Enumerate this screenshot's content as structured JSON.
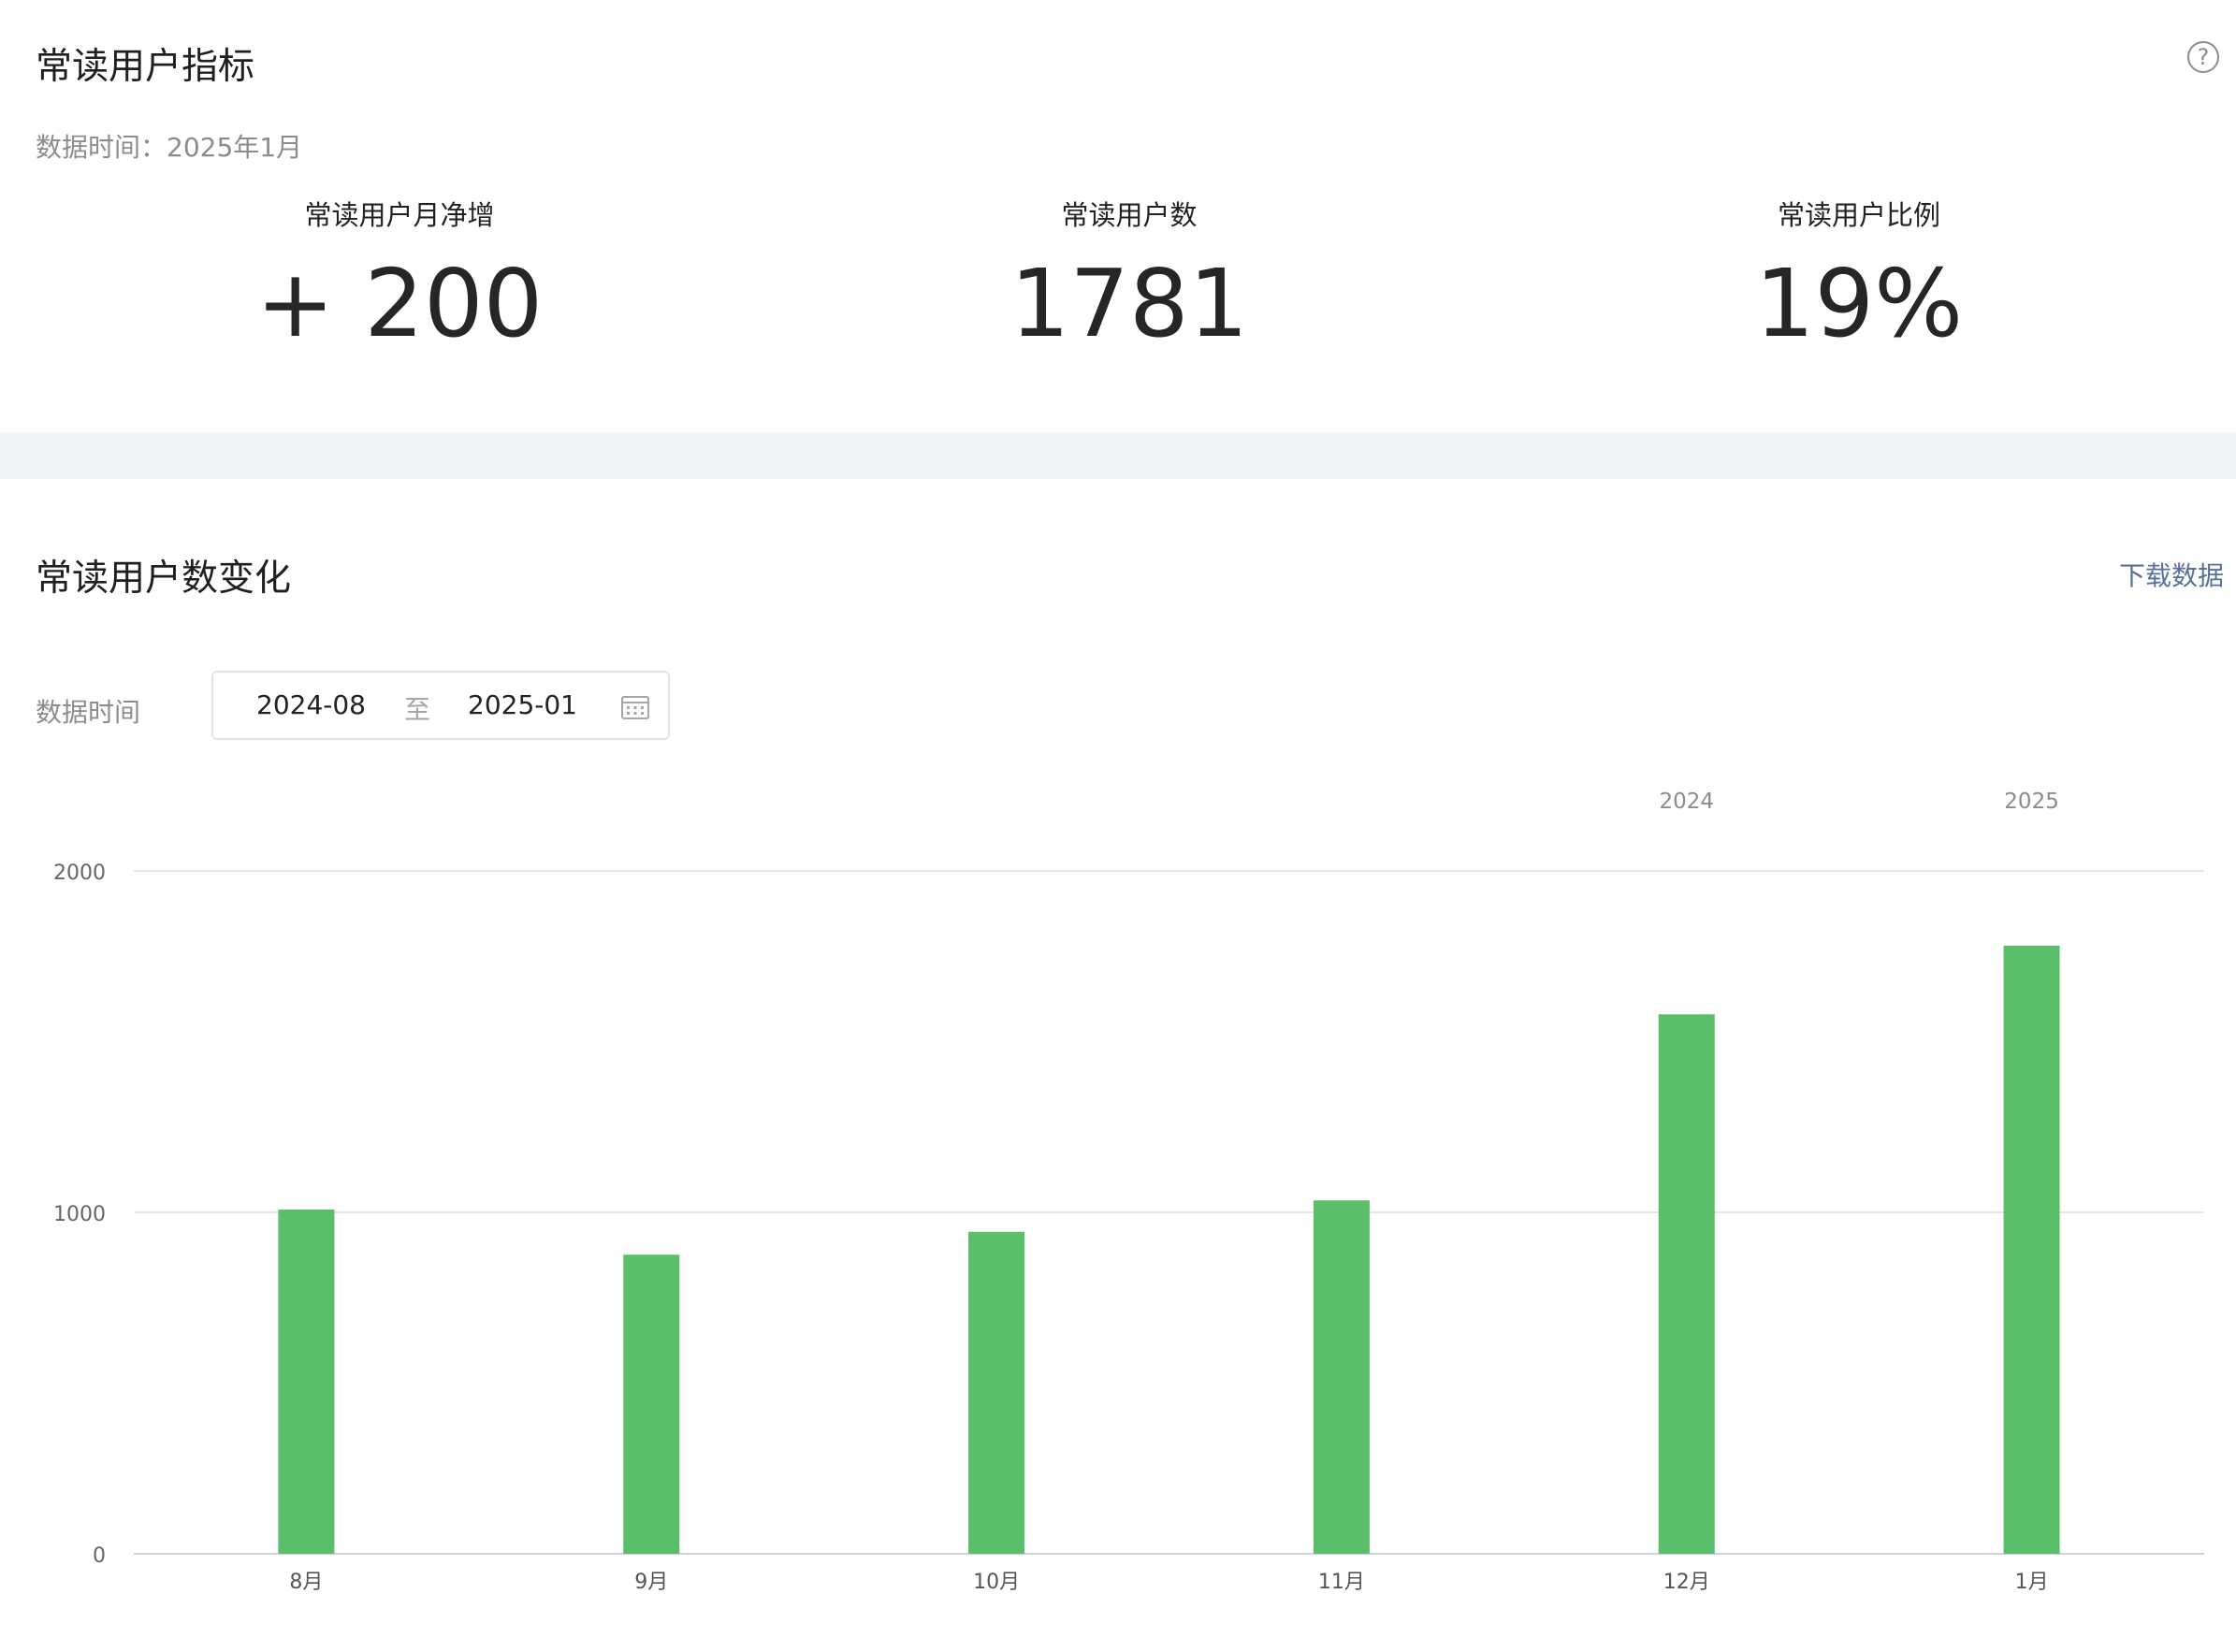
{
  "metrics_section": {
    "title": "常读用户指标",
    "help_icon": "question-circle-icon",
    "data_time": "数据时间：2025年1月",
    "metrics": [
      {
        "label": "常读用户月净增",
        "value": "+ 200"
      },
      {
        "label": "常读用户数",
        "value": "1781"
      },
      {
        "label": "常读用户比例",
        "value": "19%"
      }
    ]
  },
  "trend_section": {
    "title": "常读用户数变化",
    "download_label": "下载数据",
    "filter_label": "数据时间",
    "date_range": {
      "start": "2024-08",
      "separator": "至",
      "end": "2025-01",
      "icon": "calendar-icon"
    }
  },
  "colors": {
    "bar": "#5abe6a",
    "link": "#56709b",
    "band": "#f4f5f7",
    "grid": "#e6e6e6"
  },
  "chart_data": {
    "type": "bar",
    "categories": [
      "8月",
      "9月",
      "10月",
      "11月",
      "12月",
      "1月"
    ],
    "values": [
      1008,
      876,
      943,
      1035,
      1580,
      1781
    ],
    "year_labels": [
      {
        "text": "2024",
        "category_index": 4
      },
      {
        "text": "2025",
        "category_index": 5
      }
    ],
    "y_ticks": [
      "0",
      "1000",
      "2000"
    ],
    "ylim": [
      0,
      2000
    ],
    "grid": true,
    "legend": "none"
  }
}
